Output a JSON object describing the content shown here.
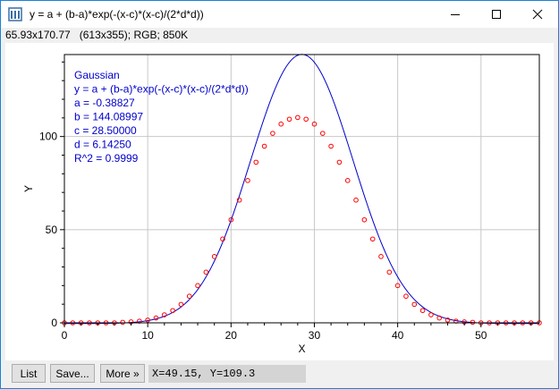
{
  "window": {
    "title": "y = a + (b-a)*exp(-(x-c)*(x-c)/(2*d*d))",
    "info": "65.93x170.77   (613x355); RGB; 850K"
  },
  "toolbar": {
    "list_label": "List",
    "save_label": "Save...",
    "more_label": "More »",
    "coords": "X=49.15, Y=109.3"
  },
  "legend": {
    "lines": [
      "Gaussian",
      "y = a + (b-a)*exp(-(x-c)*(x-c)/(2*d*d))",
      "a = -0.38827",
      "b = 144.08997",
      "c = 28.50000",
      "d = 6.14250",
      "R^2 = 0.9999"
    ]
  },
  "chart_data": {
    "type": "scatter",
    "xlabel": "X",
    "ylabel": "Y",
    "xlim": [
      0,
      57
    ],
    "ylim": [
      0,
      144
    ],
    "x_ticks": [
      0,
      10,
      20,
      30,
      40,
      50
    ],
    "y_ticks": [
      0,
      50,
      100
    ],
    "grid": true,
    "fit": {
      "model": "gaussian",
      "a": -0.38827,
      "b": 144.08997,
      "c": 28.5,
      "d": 6.1425,
      "color": "#0000cc"
    },
    "series": [
      {
        "marker": "circle",
        "color": "#ff0000",
        "x": [
          0,
          1,
          2,
          3,
          4,
          5,
          6,
          7,
          8,
          9,
          10,
          11,
          12,
          13,
          14,
          15,
          16,
          17,
          18,
          19,
          20,
          21,
          22,
          23,
          24,
          25,
          26,
          27,
          28,
          29,
          30,
          31,
          32,
          33,
          34,
          35,
          36,
          37,
          38,
          39,
          40,
          41,
          42,
          43,
          44,
          45,
          46,
          47,
          48,
          49,
          50,
          51,
          52,
          53,
          54,
          55,
          56,
          57
        ],
        "y": [
          0,
          0,
          0,
          0,
          0,
          0,
          0,
          0.3,
          0.5,
          0.9,
          1.5,
          2.6,
          4.3,
          6.6,
          9.9,
          14.3,
          20,
          27.2,
          35.6,
          45,
          55.3,
          65.9,
          76.4,
          86.2,
          94.8,
          101.7,
          106.7,
          109.3,
          110.2,
          109.3,
          106.7,
          101.7,
          94.8,
          86.2,
          76.4,
          65.9,
          55.3,
          45,
          35.6,
          27.2,
          20,
          14.3,
          9.9,
          6.6,
          4.3,
          2.6,
          1.5,
          0.9,
          0.5,
          0.3,
          0,
          0,
          0,
          0,
          0,
          0,
          0,
          0
        ]
      }
    ]
  }
}
